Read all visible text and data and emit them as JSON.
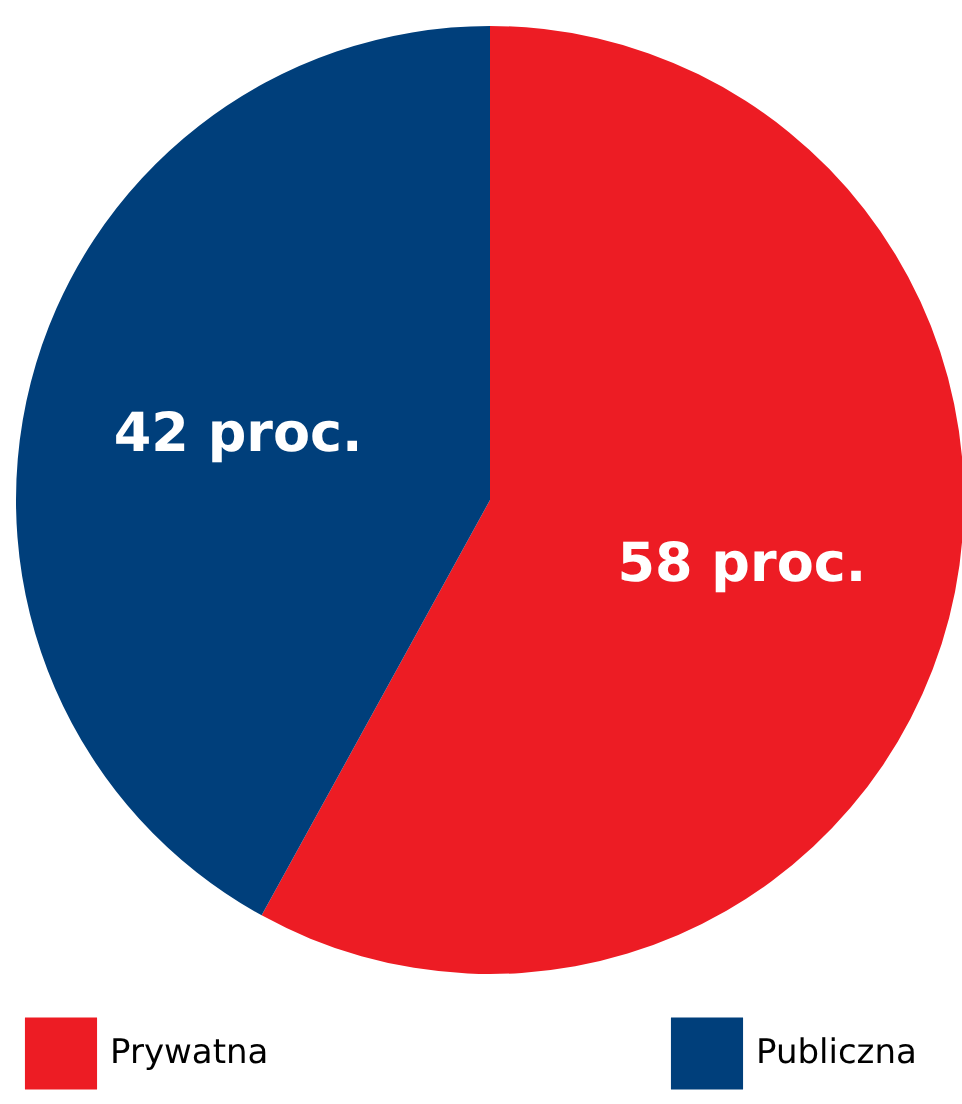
{
  "chart_data": {
    "type": "pie",
    "categories": [
      "Prywatna",
      "Publiczna"
    ],
    "values": [
      58,
      42
    ],
    "colors": [
      "#ed1c24",
      "#003f7b"
    ],
    "value_labels": [
      "58 proc.",
      "42 proc."
    ],
    "legend": "bottom"
  }
}
